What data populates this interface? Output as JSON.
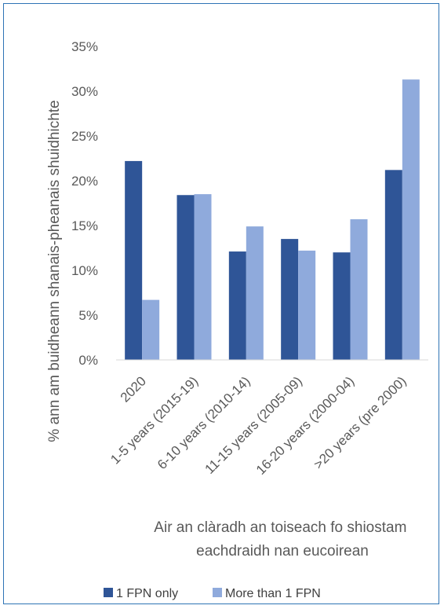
{
  "chart_data": {
    "type": "bar",
    "categories": [
      "2020",
      "1-5 years (2015-19)",
      "6-10 years (2010-14)",
      "11-15 years (2005-09)",
      "16-20 years (2000-04)",
      ">20 years (pre 2000)"
    ],
    "series": [
      {
        "name": "1 FPN only",
        "color": "#2f5597",
        "values": [
          22.2,
          18.4,
          12.1,
          13.5,
          12.0,
          21.2
        ]
      },
      {
        "name": "More than 1 FPN",
        "color": "#8faadc",
        "values": [
          6.7,
          18.5,
          14.9,
          12.2,
          15.7,
          31.3
        ]
      }
    ],
    "xlabel_lines": [
      "Air an clàradh an toiseach fo shiostam",
      "eachdraidh nan eucoirean"
    ],
    "ylabel": "% ann am buidheann shanais-pheanais shuidhichte",
    "ylim": [
      0,
      35
    ],
    "yticks": [
      0,
      5,
      10,
      15,
      20,
      25,
      30,
      35
    ],
    "ytick_labels": [
      "0%",
      "5%",
      "10%",
      "15%",
      "20%",
      "25%",
      "30%",
      "35%"
    ],
    "grid": false,
    "legend_position": "bottom"
  }
}
